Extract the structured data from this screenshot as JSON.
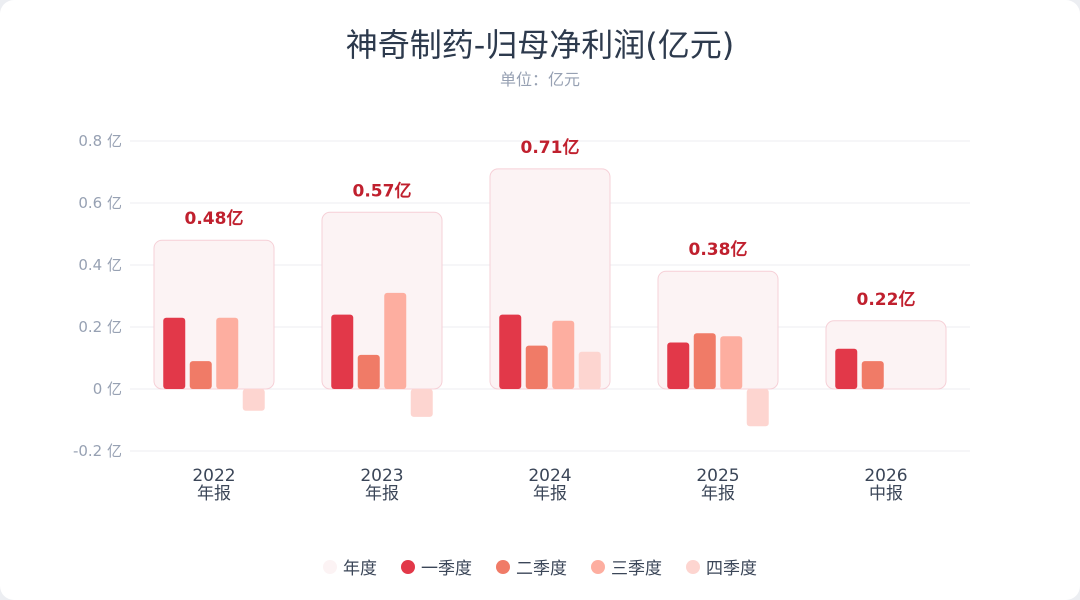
{
  "title": "神奇制药-归母净利润(亿元)",
  "subtitle": "单位：亿元",
  "colors": {
    "annual_fill": "#fcf3f4",
    "annual_stroke": "#f6d0d7",
    "q1": "#e23849",
    "q2": "#f07b67",
    "q3": "#fdaea0",
    "q4": "#fdd5d0",
    "total_label": "#c0202e",
    "grid": "#eceef2",
    "tick": "#97a1b3",
    "category": "#3b4658"
  },
  "legend": [
    {
      "label": "年度",
      "color": "#fcf3f4"
    },
    {
      "label": "一季度",
      "color": "#e23849"
    },
    {
      "label": "二季度",
      "color": "#f07b67"
    },
    {
      "label": "三季度",
      "color": "#fdaea0"
    },
    {
      "label": "四季度",
      "color": "#fdd5d0"
    }
  ],
  "chart_data": {
    "type": "bar",
    "title": "神奇制药-归母净利润(亿元)",
    "subtitle": "单位：亿元",
    "unit": "亿",
    "ylim": [
      -0.2,
      0.8
    ],
    "yticks": [
      0.8,
      0.6,
      0.4,
      0.2,
      0,
      -0.2
    ],
    "ytick_labels": [
      "0.8 亿",
      "0.6 亿",
      "0.4 亿",
      "0.2 亿",
      "0 亿",
      "-0.2 亿"
    ],
    "grid": true,
    "legend_position": "bottom",
    "categories": [
      {
        "year": "2022",
        "period": "年报"
      },
      {
        "year": "2023",
        "period": "年报"
      },
      {
        "year": "2024",
        "period": "年报"
      },
      {
        "year": "2025",
        "period": "年报"
      },
      {
        "year": "2026",
        "period": "中报"
      }
    ],
    "annual_totals": [
      0.48,
      0.57,
      0.71,
      0.38,
      0.22
    ],
    "annual_labels": [
      "0.48亿",
      "0.57亿",
      "0.71亿",
      "0.38亿",
      "0.22亿"
    ],
    "series": [
      {
        "name": "年度",
        "values": [
          0.48,
          0.57,
          0.71,
          0.38,
          0.22
        ]
      },
      {
        "name": "一季度",
        "values": [
          0.23,
          0.24,
          0.24,
          0.15,
          0.13
        ]
      },
      {
        "name": "二季度",
        "values": [
          0.09,
          0.11,
          0.14,
          0.18,
          0.09
        ]
      },
      {
        "name": "三季度",
        "values": [
          0.23,
          0.31,
          0.22,
          0.17,
          null
        ]
      },
      {
        "name": "四季度",
        "values": [
          -0.07,
          -0.09,
          0.12,
          -0.12,
          null
        ]
      }
    ]
  }
}
